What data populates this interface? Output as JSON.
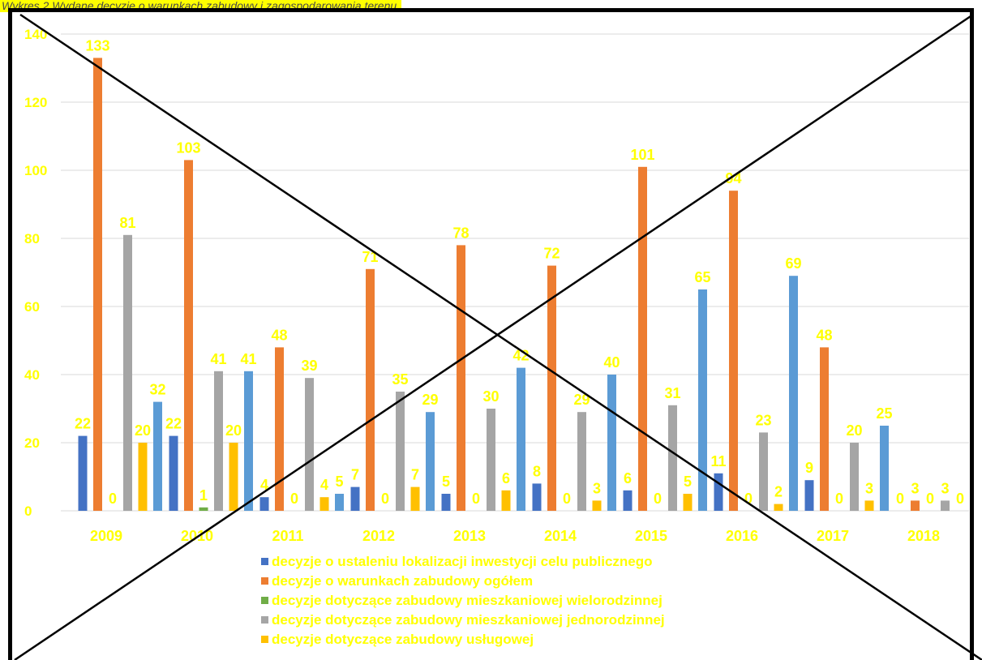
{
  "caption": "Wykres 2 Wydane decyzje o warunkach zabudowy i zagospodarowania terenu",
  "colors": {
    "axis_text": "#ffff00",
    "frame": "#000000",
    "gridline": "#d9d9d9"
  },
  "chart_data": {
    "type": "bar",
    "title": "Wykres 2 Wydane decyzje o warunkach zabudowy i zagospodarowania terenu",
    "categories": [
      "2009",
      "2010",
      "2011",
      "2012",
      "2013",
      "2014",
      "2015",
      "2016",
      "2017",
      "2018"
    ],
    "ylim": [
      0,
      140
    ],
    "yticks": [
      0,
      20,
      40,
      60,
      80,
      100,
      120,
      140
    ],
    "grid": true,
    "legend_position": "bottom",
    "crossed_out": true,
    "series": [
      {
        "name": "decyzje o ustaleniu lokalizacji inwestycji celu publicznego",
        "color": "#4472c4",
        "values": [
          22,
          22,
          4,
          7,
          5,
          8,
          6,
          11,
          9,
          0
        ]
      },
      {
        "name": "decyzje o warunkach zabudowy ogółem",
        "color": "#ed7d31",
        "values": [
          133,
          103,
          48,
          71,
          78,
          72,
          101,
          94,
          48,
          3
        ]
      },
      {
        "name": "decyzje dotyczące zabudowy mieszkaniowej wielorodzinnej",
        "color": "#70ad47",
        "values": [
          0,
          1,
          0,
          0,
          0,
          0,
          0,
          0,
          0,
          0
        ]
      },
      {
        "name": "decyzje dotyczące zabudowy mieszkaniowej jednorodzinnej",
        "color": "#a5a5a5",
        "values": [
          81,
          41,
          39,
          35,
          30,
          29,
          31,
          23,
          20,
          3
        ]
      },
      {
        "name": "decyzje dotyczące zabudowy usługowej",
        "color": "#ffc000",
        "values": [
          20,
          20,
          4,
          7,
          6,
          3,
          5,
          2,
          3,
          0
        ]
      },
      {
        "name": "",
        "color": "#5b9bd5",
        "values": [
          32,
          41,
          5,
          29,
          42,
          40,
          65,
          69,
          25,
          0
        ]
      }
    ]
  }
}
